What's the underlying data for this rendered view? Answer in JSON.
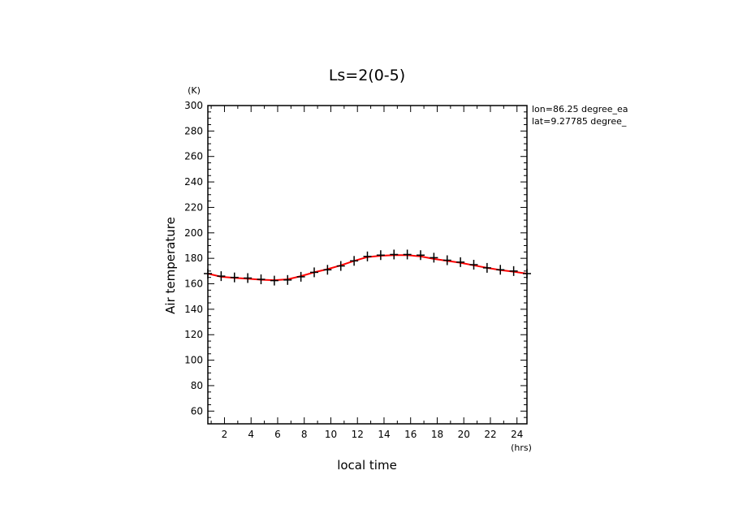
{
  "chart_data": {
    "type": "line",
    "title": "Ls=2(0-5)",
    "xlabel": "local time",
    "ylabel": "Air temperature",
    "x_unit": "(hrs)",
    "y_unit": "(K)",
    "xlim": [
      0.75,
      24.75
    ],
    "ylim": [
      50,
      300
    ],
    "x_ticks": [
      2,
      4,
      6,
      8,
      10,
      12,
      14,
      16,
      18,
      20,
      22,
      24
    ],
    "y_ticks": [
      60,
      80,
      100,
      120,
      140,
      160,
      180,
      200,
      220,
      240,
      260,
      280,
      300
    ],
    "annotations": [
      "lon=86.25 degree_ea",
      "lat=9.27785 degree_"
    ],
    "grid": false,
    "series": [
      {
        "style": "markers",
        "marker": "plus",
        "color": "#000000",
        "x": [
          0.75,
          1.75,
          2.75,
          3.75,
          4.75,
          5.75,
          6.75,
          7.75,
          8.75,
          9.75,
          10.75,
          11.75,
          12.75,
          13.75,
          14.75,
          15.75,
          16.75,
          17.75,
          18.75,
          19.75,
          20.75,
          21.75,
          22.75,
          23.75,
          24.75
        ],
        "y": [
          168,
          166,
          165,
          164.5,
          163.5,
          162.5,
          163,
          165.5,
          169,
          171,
          174,
          178,
          181.5,
          182.5,
          183,
          183,
          182.5,
          180.5,
          178.5,
          177,
          175,
          172.5,
          171,
          170,
          168
        ]
      },
      {
        "style": "line",
        "color": "#ff0000",
        "x": [
          0.75,
          1.75,
          2.75,
          3.75,
          4.75,
          5.75,
          6.75,
          7.75,
          8.75,
          9.75,
          10.75,
          11.75,
          12.75,
          13.75,
          14.75,
          15.75,
          16.75,
          17.75,
          18.75,
          19.75,
          20.75,
          21.75,
          22.75,
          23.75,
          24.75
        ],
        "y": [
          168,
          165.5,
          164.7,
          164,
          163.2,
          162.8,
          163.5,
          166,
          169,
          171.5,
          174.5,
          178,
          181,
          182,
          182.5,
          182.5,
          181.5,
          179.5,
          178,
          176.5,
          174.5,
          172.5,
          170.8,
          169.5,
          168
        ]
      }
    ]
  }
}
